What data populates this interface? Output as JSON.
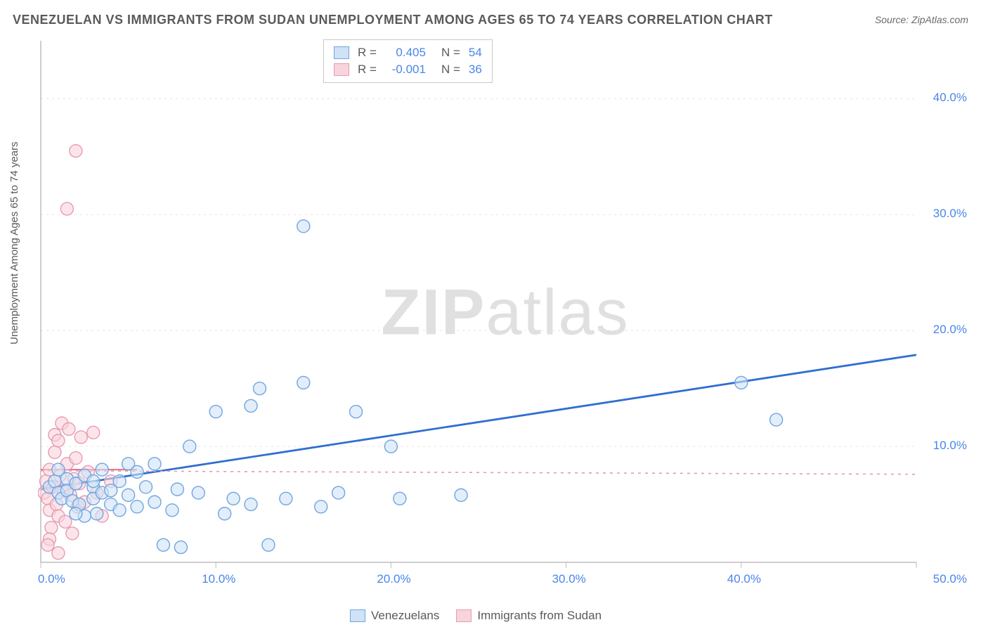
{
  "title": "VENEZUELAN VS IMMIGRANTS FROM SUDAN UNEMPLOYMENT AMONG AGES 65 TO 74 YEARS CORRELATION CHART",
  "source": "Source: ZipAtlas.com",
  "ylabel": "Unemployment Among Ages 65 to 74 years",
  "watermark_a": "ZIP",
  "watermark_b": "atlas",
  "chart": {
    "type": "scatter",
    "xlim": [
      0,
      50
    ],
    "ylim": [
      0,
      45
    ],
    "xtick_step": 10,
    "ytick_step": 10,
    "xtick_labels": [
      "0.0%",
      "10.0%",
      "20.0%",
      "30.0%",
      "40.0%",
      "50.0%"
    ],
    "ytick_labels": [
      "10.0%",
      "20.0%",
      "30.0%",
      "40.0%"
    ],
    "ytick_values": [
      10,
      20,
      30,
      40
    ],
    "background_color": "#ffffff",
    "grid_color": "#e4e4e4",
    "axis_color": "#bdbdbd",
    "tick_label_color": "#4a86e8",
    "marker_radius": 9,
    "marker_stroke_width": 1.4,
    "series": [
      {
        "name": "Venezuelans",
        "fill": "#cfe2f7",
        "stroke": "#6fa5e0",
        "fill_opacity": 0.6,
        "R": "0.405",
        "N": "54",
        "trend": {
          "x1": 0,
          "y1": 6.3,
          "x2": 50,
          "y2": 17.9,
          "color": "#2f6fd0",
          "width": 2.8,
          "dash": ""
        },
        "points": [
          [
            0.5,
            6.5
          ],
          [
            0.8,
            7.0
          ],
          [
            1.0,
            6.0
          ],
          [
            1.2,
            5.5
          ],
          [
            1.5,
            7.2
          ],
          [
            1.5,
            6.2
          ],
          [
            1.8,
            5.3
          ],
          [
            2.0,
            6.8
          ],
          [
            2.2,
            5.0
          ],
          [
            2.5,
            7.5
          ],
          [
            2.5,
            4.0
          ],
          [
            3.0,
            6.5
          ],
          [
            3.0,
            5.5
          ],
          [
            3.2,
            4.2
          ],
          [
            3.5,
            8.0
          ],
          [
            3.5,
            6.0
          ],
          [
            4.0,
            5.0
          ],
          [
            4.0,
            6.2
          ],
          [
            4.5,
            7.0
          ],
          [
            4.5,
            4.5
          ],
          [
            5.0,
            8.5
          ],
          [
            5.0,
            5.8
          ],
          [
            5.5,
            7.8
          ],
          [
            5.5,
            4.8
          ],
          [
            6.0,
            6.5
          ],
          [
            6.5,
            5.2
          ],
          [
            7.0,
            1.5
          ],
          [
            7.5,
            4.5
          ],
          [
            8.0,
            1.3
          ],
          [
            8.5,
            10.0
          ],
          [
            9.0,
            6.0
          ],
          [
            10.0,
            13.0
          ],
          [
            10.5,
            4.2
          ],
          [
            11.0,
            5.5
          ],
          [
            12.0,
            13.5
          ],
          [
            12.5,
            15.0
          ],
          [
            12.0,
            5.0
          ],
          [
            13.0,
            1.5
          ],
          [
            14.0,
            5.5
          ],
          [
            15.0,
            15.5
          ],
          [
            15.0,
            29.0
          ],
          [
            16.0,
            4.8
          ],
          [
            17.0,
            6.0
          ],
          [
            18.0,
            13.0
          ],
          [
            20.0,
            10.0
          ],
          [
            20.5,
            5.5
          ],
          [
            24.0,
            5.8
          ],
          [
            40.0,
            15.5
          ],
          [
            42.0,
            12.3
          ],
          [
            1.0,
            8.0
          ],
          [
            2.0,
            4.2
          ],
          [
            3.0,
            7.0
          ],
          [
            6.5,
            8.5
          ],
          [
            7.8,
            6.3
          ]
        ]
      },
      {
        "name": "Immigrants from Sudan",
        "fill": "#f8d4dc",
        "stroke": "#e89bb0",
        "fill_opacity": 0.6,
        "R": "-0.001",
        "N": "36",
        "trend": {
          "x1": 0,
          "y1": 7.9,
          "x2": 50,
          "y2": 7.6,
          "color": "#e59aad",
          "width": 1.6,
          "dash": "4,6"
        },
        "trend_solid": {
          "x1": 0,
          "y1": 8.0,
          "x2": 5.5,
          "y2": 8.0,
          "color": "#e87995",
          "width": 2.2
        },
        "points": [
          [
            0.2,
            6.0
          ],
          [
            0.3,
            7.0
          ],
          [
            0.4,
            5.5
          ],
          [
            0.5,
            8.0
          ],
          [
            0.5,
            4.5
          ],
          [
            0.6,
            3.0
          ],
          [
            0.7,
            6.5
          ],
          [
            0.8,
            9.5
          ],
          [
            0.8,
            11.0
          ],
          [
            0.9,
            5.0
          ],
          [
            1.0,
            10.5
          ],
          [
            1.0,
            4.0
          ],
          [
            1.1,
            7.5
          ],
          [
            1.2,
            12.0
          ],
          [
            1.3,
            6.2
          ],
          [
            1.4,
            3.5
          ],
          [
            1.5,
            8.5
          ],
          [
            1.6,
            11.5
          ],
          [
            1.7,
            5.8
          ],
          [
            1.8,
            2.5
          ],
          [
            1.9,
            7.2
          ],
          [
            2.0,
            9.0
          ],
          [
            2.1,
            4.8
          ],
          [
            2.2,
            6.8
          ],
          [
            2.3,
            10.8
          ],
          [
            2.5,
            5.2
          ],
          [
            2.7,
            7.8
          ],
          [
            3.0,
            11.2
          ],
          [
            3.2,
            6.0
          ],
          [
            3.5,
            4.0
          ],
          [
            1.0,
            0.8
          ],
          [
            0.5,
            2.0
          ],
          [
            0.4,
            1.5
          ],
          [
            1.5,
            30.5
          ],
          [
            2.0,
            35.5
          ],
          [
            4.0,
            7.0
          ]
        ]
      }
    ]
  },
  "legend_top": {
    "rows": [
      {
        "swatch_fill": "#cfe2f7",
        "swatch_stroke": "#6fa5e0",
        "r_lbl": "R =",
        "r_val": "0.405",
        "n_lbl": "N =",
        "n_val": "54"
      },
      {
        "swatch_fill": "#f8d4dc",
        "swatch_stroke": "#e89bb0",
        "r_lbl": "R =",
        "r_val": "-0.001",
        "n_lbl": "N =",
        "n_val": "36"
      }
    ]
  },
  "legend_bottom": [
    {
      "swatch_fill": "#cfe2f7",
      "swatch_stroke": "#6fa5e0",
      "label": "Venezuelans"
    },
    {
      "swatch_fill": "#f8d4dc",
      "swatch_stroke": "#e89bb0",
      "label": "Immigrants from Sudan"
    }
  ]
}
